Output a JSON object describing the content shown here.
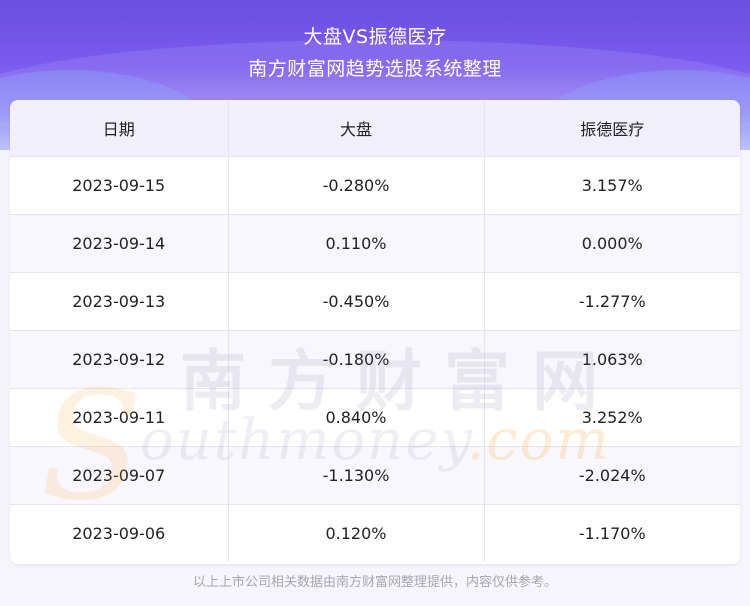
{
  "header": {
    "title_line1": "大盘VS振德医疗",
    "title_line2": "南方财富网趋势选股系统整理"
  },
  "table": {
    "columns": [
      "日期",
      "大盘",
      "振德医疗"
    ],
    "rows": [
      [
        "2023-09-15",
        "-0.280%",
        "3.157%"
      ],
      [
        "2023-09-14",
        "0.110%",
        "0.000%"
      ],
      [
        "2023-09-13",
        "-0.450%",
        "-1.277%"
      ],
      [
        "2023-09-12",
        "-0.180%",
        "1.063%"
      ],
      [
        "2023-09-11",
        "0.840%",
        "3.252%"
      ],
      [
        "2023-09-07",
        "-1.130%",
        "-2.024%"
      ],
      [
        "2023-09-06",
        "0.120%",
        "-1.170%"
      ]
    ]
  },
  "watermark": {
    "chinese": "南方财富网",
    "latin_initial": "S",
    "latin_rest": "outhmoney",
    "latin_suffix": ".com"
  },
  "footer": {
    "disclaimer": "以上上市公司相关数据由南方财富网整理提供，内容仅供参考。"
  },
  "colors": {
    "banner_top": "#6b4fe0",
    "header_row_bg": "#f1effb",
    "footer_text": "#a7a5b2"
  }
}
